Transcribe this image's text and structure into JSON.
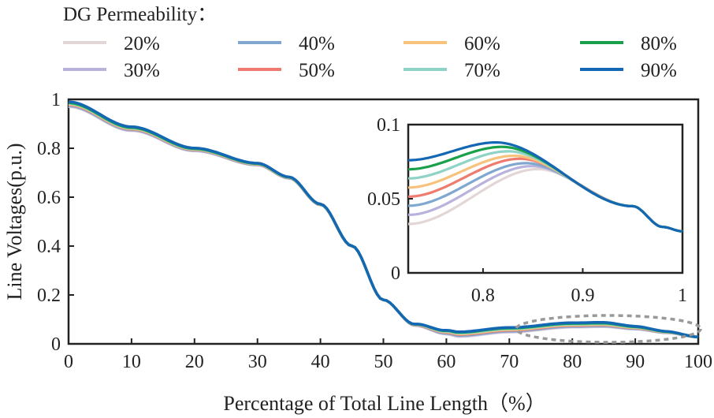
{
  "chart_data": {
    "type": "line",
    "legend_title": "DG Permeability：",
    "legend_position": "top",
    "xlabel": "Percentage of Total Line Length（%）",
    "ylabel": "Line Voltages(p.u.)",
    "xlim": [
      0,
      100
    ],
    "ylim": [
      0,
      1
    ],
    "x_ticks": [
      "0",
      "10",
      "20",
      "30",
      "40",
      "50",
      "60",
      "70",
      "80",
      "90",
      "100"
    ],
    "y_ticks": [
      "0",
      "0.2",
      "0.4",
      "0.6",
      "0.8",
      "1"
    ],
    "grid": false,
    "series": [
      {
        "name": "20%",
        "color": "#e3d6d6",
        "y0": 0.97,
        "y62": 0.03,
        "y85": 0.07
      },
      {
        "name": "30%",
        "color": "#b9b2dc",
        "y0": 0.972,
        "y62": 0.032,
        "y85": 0.072
      },
      {
        "name": "40%",
        "color": "#7fa7cf",
        "y0": 0.975,
        "y62": 0.035,
        "y85": 0.074
      },
      {
        "name": "50%",
        "color": "#ef7b6e",
        "y0": 0.978,
        "y62": 0.039,
        "y85": 0.077
      },
      {
        "name": "60%",
        "color": "#f7c27c",
        "y0": 0.98,
        "y62": 0.042,
        "y85": 0.079
      },
      {
        "name": "70%",
        "color": "#8ed3c6",
        "y0": 0.983,
        "y62": 0.045,
        "y85": 0.082
      },
      {
        "name": "80%",
        "color": "#1aa04a",
        "y0": 0.986,
        "y62": 0.048,
        "y85": 0.085
      },
      {
        "name": "90%",
        "color": "#1468b3",
        "y0": 0.99,
        "y62": 0.05,
        "y85": 0.088
      }
    ],
    "inset": {
      "xlim": [
        0.725,
        1.0
      ],
      "ylim": [
        0,
        0.1
      ],
      "x_ticks": [
        "0.8",
        "0.9",
        "1"
      ],
      "y_ticks": [
        "0",
        "0.05",
        "0.1"
      ]
    }
  }
}
